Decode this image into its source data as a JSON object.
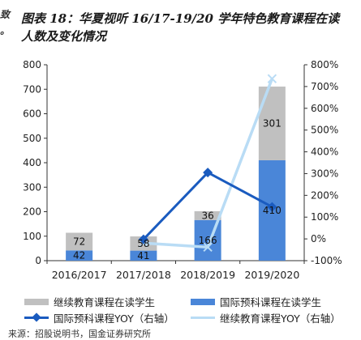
{
  "title": "图表 18：华夏视听 16/17-19/20 学年特色教育课程在读\n人数及变化情况",
  "left_edge_text": [
    "致",
    "。"
  ],
  "source": "来源：招股说明书，国金证券研究所",
  "colors": {
    "continuing_bar": "#c0c0c0",
    "intl_bar": "#4a86d8",
    "intl_yoy_line": "#1a5bbf",
    "cont_yoy_line": "#b9dcf5"
  },
  "chart_data": {
    "type": "bar",
    "categories": [
      "2016/2017",
      "2017/2018",
      "2018/2019",
      "2019/2020"
    ],
    "y_left": {
      "min": 0,
      "max": 800,
      "step": 100
    },
    "y_right": {
      "min": -100,
      "max": 800,
      "step": 100,
      "unit": "%"
    },
    "grid": false,
    "legend_position": "bottom",
    "series": [
      {
        "name": "国际预科课程在读学生",
        "type": "bar",
        "stack": "a",
        "axis": "left",
        "values": [
          42,
          41,
          166,
          410
        ],
        "labels": [
          "42",
          "41",
          "166",
          "410"
        ]
      },
      {
        "name": "继续教育课程在读学生",
        "type": "bar",
        "stack": "a",
        "axis": "left",
        "values": [
          72,
          58,
          36,
          301
        ],
        "labels": [
          "72",
          "58",
          "36",
          "301"
        ]
      },
      {
        "name": "国际预科课程YOY（右轴）",
        "type": "line",
        "axis": "right",
        "marker": "diamond",
        "values": [
          null,
          -2,
          305,
          147
        ]
      },
      {
        "name": "继续教育课程YOY（右轴）",
        "type": "line",
        "axis": "right",
        "marker": "x",
        "values": [
          null,
          -19,
          -38,
          736
        ]
      }
    ]
  }
}
